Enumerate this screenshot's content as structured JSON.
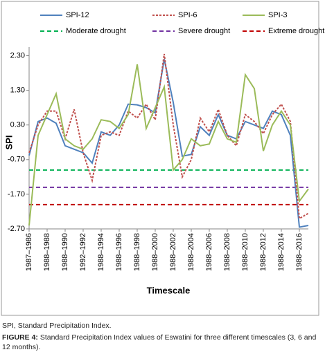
{
  "chart_data": {
    "type": "line",
    "ylabel": "SPI",
    "xlabel": "Timescale",
    "categories": [
      "1987–1986",
      null,
      "1988–1988",
      null,
      "1988–1990",
      null,
      "1992–1992",
      null,
      "1988–1994",
      null,
      "1988–1996",
      null,
      "1988–1998",
      null,
      "1988–2000",
      null,
      "1988–2002",
      null,
      "1988–2004",
      null,
      "1988–2006",
      null,
      "1988–2008",
      null,
      "1988–2010",
      null,
      "1988–2012",
      null,
      "1988–2014",
      null,
      "1988–2016",
      null
    ],
    "series": [
      {
        "name": "SPI-12",
        "color": "#4f81bd",
        "dash": "solid",
        "values": [
          -0.58,
          0.4,
          0.5,
          0.35,
          -0.3,
          -0.4,
          -0.5,
          -0.8,
          0.1,
          0.0,
          0.3,
          0.9,
          0.88,
          0.8,
          0.65,
          2.2,
          0.95,
          -0.6,
          -0.55,
          0.25,
          0.0,
          0.6,
          0.0,
          -0.1,
          0.4,
          0.3,
          0.2,
          0.7,
          0.6,
          0.0,
          -2.65,
          -2.6
        ]
      },
      {
        "name": "SPI-6",
        "color": "#c0504d",
        "dash": "dotted",
        "values": [
          -0.5,
          0.3,
          0.7,
          0.7,
          -0.1,
          0.75,
          -0.5,
          -1.3,
          0.0,
          0.1,
          0.0,
          0.7,
          0.5,
          0.9,
          0.45,
          2.35,
          0.3,
          -1.2,
          -0.7,
          0.5,
          0.1,
          0.75,
          0.0,
          -0.3,
          0.6,
          0.4,
          0.05,
          0.6,
          0.9,
          0.4,
          -2.4,
          -2.25
        ]
      },
      {
        "name": "SPI-3",
        "color": "#9bbb59",
        "dash": "solid",
        "values": [
          -2.6,
          0.0,
          0.6,
          1.2,
          -0.1,
          -0.3,
          -0.4,
          -0.1,
          0.45,
          0.4,
          0.2,
          0.6,
          2.05,
          0.2,
          0.8,
          1.4,
          -1.0,
          -0.7,
          -0.1,
          -0.3,
          -0.25,
          0.4,
          -0.1,
          -0.2,
          1.75,
          1.35,
          -0.45,
          0.3,
          0.7,
          0.3,
          -1.9,
          -1.55
        ]
      }
    ],
    "reference_lines": [
      {
        "name": "Moderate drought",
        "color": "#00b050",
        "value": -1.0
      },
      {
        "name": "Severe drought",
        "color": "#7030a0",
        "value": -1.5
      },
      {
        "name": "Extreme drought",
        "color": "#c00000",
        "value": -2.0
      }
    ],
    "ylim": [
      -2.7,
      2.55
    ],
    "yticks": [
      {
        "value": -2.7,
        "label": "-2.70"
      },
      {
        "value": -1.7,
        "label": "-1.70"
      },
      {
        "value": -0.7,
        "label": "-0.70"
      },
      {
        "value": 0.3,
        "label": "0.30"
      },
      {
        "value": 1.3,
        "label": "1.30"
      },
      {
        "value": 2.3,
        "label": "2.30"
      }
    ],
    "legend": "top",
    "grid": false
  },
  "note": "SPI, Standard Precipitation Index.",
  "figure_label": "FIGURE 4:",
  "caption": "Standard Precipitation Index values of Eswatini for three different timescales (3, 6 and 12 months)."
}
